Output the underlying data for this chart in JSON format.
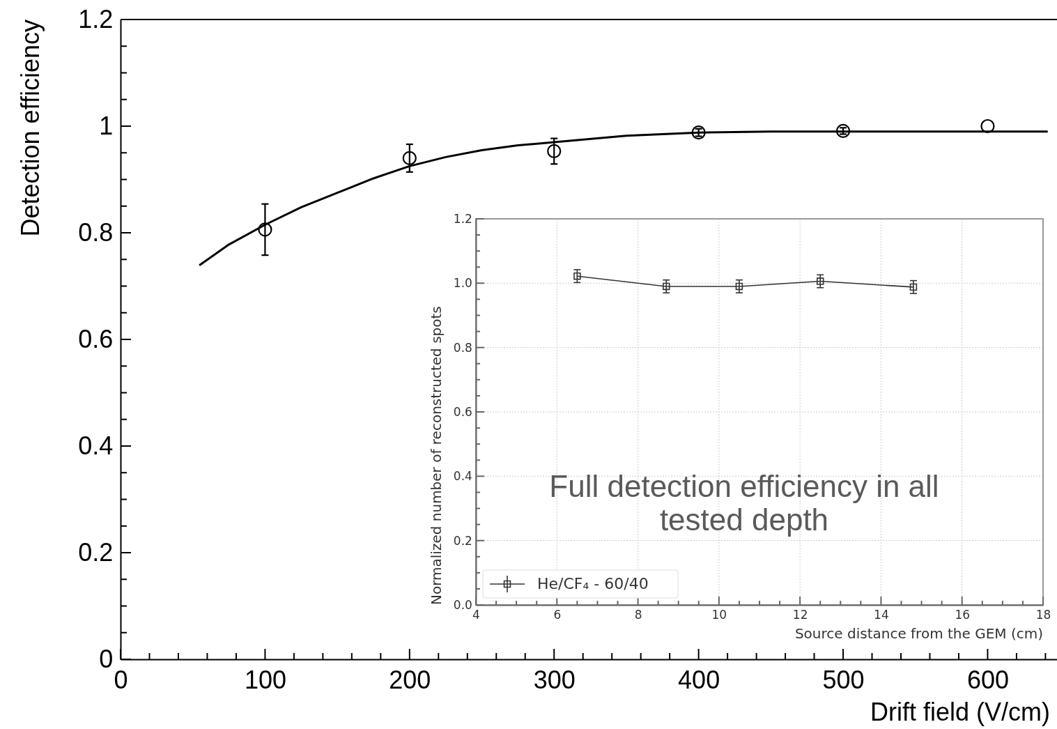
{
  "chart_data": [
    {
      "type": "scatter",
      "xlabel": "Drift field (V/cm)",
      "ylabel": "Detection efficiency",
      "marker": "circle",
      "grid": false,
      "legend": false,
      "x": [
        100,
        200,
        300,
        400,
        500,
        600
      ],
      "xlim": [
        0,
        648
      ],
      "ylim": [
        0,
        1.2
      ],
      "xticks": [
        0,
        {
          "value": 20,
          "label": null
        },
        {
          "value": 40,
          "label": null
        },
        {
          "value": 60,
          "label": null
        },
        {
          "value": 80,
          "label": null
        },
        100,
        {
          "value": 120,
          "label": null
        },
        {
          "value": 140,
          "label": null
        },
        {
          "value": 160,
          "label": null
        },
        {
          "value": 180,
          "label": null
        },
        200,
        {
          "value": 220,
          "label": null
        },
        {
          "value": 240,
          "label": null
        },
        {
          "value": 260,
          "label": null
        },
        {
          "value": 280,
          "label": null
        },
        300,
        {
          "value": 320,
          "label": null
        },
        {
          "value": 340,
          "label": null
        },
        {
          "value": 360,
          "label": null
        },
        {
          "value": 380,
          "label": null
        },
        400,
        {
          "value": 420,
          "label": null
        },
        {
          "value": 440,
          "label": null
        },
        {
          "value": 460,
          "label": null
        },
        {
          "value": 480,
          "label": null
        },
        500,
        {
          "value": 520,
          "label": null
        },
        {
          "value": 540,
          "label": null
        },
        {
          "value": 560,
          "label": null
        },
        {
          "value": 580,
          "label": null
        },
        600,
        {
          "value": 620,
          "label": null
        },
        {
          "value": 640,
          "label": null
        }
      ],
      "yticks": [
        0,
        {
          "value": 0.05,
          "label": null
        },
        {
          "value": 0.1,
          "label": null
        },
        {
          "value": 0.15,
          "label": null
        },
        0.2,
        {
          "value": 0.25,
          "label": null
        },
        {
          "value": 0.3,
          "label": null
        },
        {
          "value": 0.35,
          "label": null
        },
        0.4,
        {
          "value": 0.45,
          "label": null
        },
        {
          "value": 0.5,
          "label": null
        },
        {
          "value": 0.55,
          "label": null
        },
        0.6,
        {
          "value": 0.65,
          "label": null
        },
        {
          "value": 0.7,
          "label": null
        },
        {
          "value": 0.75,
          "label": null
        },
        0.8,
        {
          "value": 0.85,
          "label": null
        },
        {
          "value": 0.9,
          "label": null
        },
        {
          "value": 0.95,
          "label": null
        },
        1,
        {
          "value": 1.05,
          "label": null
        },
        {
          "value": 1.1,
          "label": null
        },
        {
          "value": 1.15,
          "label": null
        },
        1.2
      ],
      "series": [
        {
          "type": "scatter",
          "color": "#000000",
          "values": [
            0.806,
            0.94,
            0.953,
            0.988,
            0.991,
            1.0
          ],
          "errors": [
            0.048,
            0.026,
            0.024,
            0.007,
            0.006,
            null
          ]
        },
        {
          "type": "line",
          "color": "#000000",
          "marker": "none",
          "x": [
            55,
            75,
            100,
            125,
            150,
            175,
            200,
            225,
            250,
            275,
            300,
            350,
            400,
            450,
            500,
            550,
            600,
            641
          ],
          "values": [
            0.74,
            0.778,
            0.815,
            0.848,
            0.875,
            0.902,
            0.925,
            0.942,
            0.955,
            0.964,
            0.97,
            0.982,
            0.988,
            0.99,
            0.99,
            0.99,
            0.99,
            0.99
          ]
        }
      ]
    },
    {
      "type": "line",
      "xlabel": "Source distance from the GEM (cm)",
      "ylabel": "Normalized number of reconstructed spots",
      "marker": "square",
      "grid": true,
      "legend": "bottom left",
      "annotations": [
        "Full detection efficiency in all tested depth"
      ],
      "x": [
        6.5,
        8.7,
        10.5,
        12.5,
        14.8
      ],
      "xlim": [
        4,
        18
      ],
      "ylim": [
        0,
        1.2
      ],
      "xticks": [
        4,
        {
          "value": 4.5,
          "label": null
        },
        {
          "value": 5,
          "label": null
        },
        {
          "value": 5.5,
          "label": null
        },
        6,
        {
          "value": 6.5,
          "label": null
        },
        {
          "value": 7,
          "label": null
        },
        {
          "value": 7.5,
          "label": null
        },
        8,
        {
          "value": 8.5,
          "label": null
        },
        {
          "value": 9,
          "label": null
        },
        {
          "value": 9.5,
          "label": null
        },
        10,
        {
          "value": 10.5,
          "label": null
        },
        {
          "value": 11,
          "label": null
        },
        {
          "value": 11.5,
          "label": null
        },
        12,
        {
          "value": 12.5,
          "label": null
        },
        {
          "value": 13,
          "label": null
        },
        {
          "value": 13.5,
          "label": null
        },
        14,
        {
          "value": 14.5,
          "label": null
        },
        {
          "value": 15,
          "label": null
        },
        {
          "value": 15.5,
          "label": null
        },
        16,
        {
          "value": 16.5,
          "label": null
        },
        {
          "value": 17,
          "label": null
        },
        {
          "value": 17.5,
          "label": null
        },
        18
      ],
      "yticks": [
        {
          "value": 0,
          "label": "0.0"
        },
        {
          "value": 0.05,
          "label": null
        },
        {
          "value": 0.1,
          "label": null
        },
        {
          "value": 0.15,
          "label": null
        },
        0.2,
        {
          "value": 0.25,
          "label": null
        },
        {
          "value": 0.3,
          "label": null
        },
        {
          "value": 0.35,
          "label": null
        },
        0.4,
        {
          "value": 0.45,
          "label": null
        },
        {
          "value": 0.5,
          "label": null
        },
        {
          "value": 0.55,
          "label": null
        },
        0.6,
        {
          "value": 0.65,
          "label": null
        },
        {
          "value": 0.7,
          "label": null
        },
        {
          "value": 0.75,
          "label": null
        },
        0.8,
        {
          "value": 0.85,
          "label": null
        },
        {
          "value": 0.9,
          "label": null
        },
        {
          "value": 0.95,
          "label": null
        },
        {
          "value": 1,
          "label": "1.0"
        },
        {
          "value": 1.05,
          "label": null
        },
        {
          "value": 1.1,
          "label": null
        },
        {
          "value": 1.15,
          "label": null
        },
        1.2
      ],
      "series": [
        {
          "name": "He/CF₄ - 60/40",
          "color": "#333333",
          "values": [
            1.022,
            0.99,
            0.99,
            1.006,
            0.988
          ],
          "errors": [
            0.02,
            0.02,
            0.02,
            0.02,
            0.02
          ]
        }
      ]
    }
  ]
}
